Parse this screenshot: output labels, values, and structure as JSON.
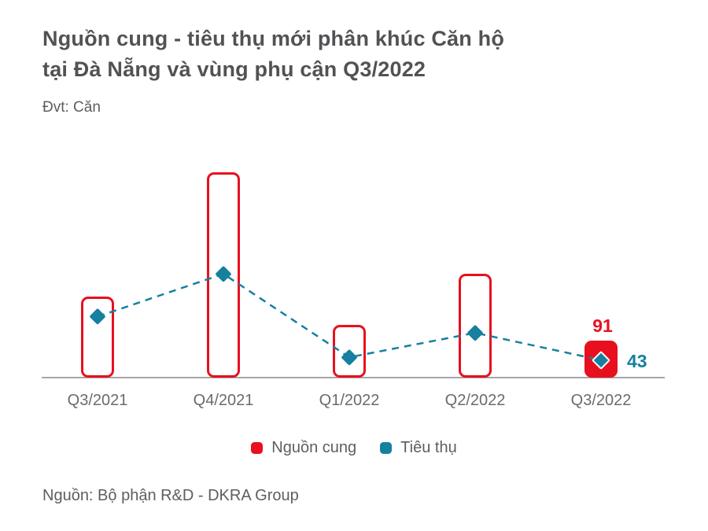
{
  "page": {
    "title_line1": "Nguồn cung - tiêu thụ mới phân khúc Căn hộ",
    "title_line2": "tại Đà Nẵng và vùng phụ cận Q3/2022",
    "unit_label": "Đvt: Căn",
    "source": "Nguồn: Bộ phận R&D - DKRA Group"
  },
  "colors": {
    "supply_red": "#e8101e",
    "consumption_teal": "#16809f",
    "title_gray": "#515254",
    "text_gray": "#5d5e60",
    "axis_gray": "#a6a6a6"
  },
  "legend": {
    "items": [
      {
        "label": "Nguồn cung",
        "color": "#e8101e"
      },
      {
        "label": "Tiêu thụ",
        "color": "#16809f"
      }
    ]
  },
  "chart_data": {
    "type": "bar",
    "subtype": "outlined-bars-with-dashed-line-and-diamond-markers",
    "title": "Nguồn cung - tiêu thụ mới phân khúc Căn hộ tại Đà Nẵng và vùng phụ cận Q3/2022",
    "unit": "Căn",
    "categories": [
      "Q3/2021",
      "Q4/2021",
      "Q1/2022",
      "Q2/2022",
      "Q3/2022"
    ],
    "series": [
      {
        "name": "Nguồn cung",
        "type": "bar",
        "color": "#e8101e",
        "values": [
          200,
          505,
          130,
          255,
          91
        ],
        "filled": [
          false,
          false,
          false,
          false,
          true
        ]
      },
      {
        "name": "Tiêu thụ",
        "type": "line",
        "line_style": "dashed",
        "marker": "diamond",
        "color": "#16809f",
        "values": [
          150,
          255,
          50,
          110,
          43
        ]
      }
    ],
    "data_labels": [
      {
        "series": "Nguồn cung",
        "category": "Q3/2022",
        "text": "91",
        "color": "#e8101e"
      },
      {
        "series": "Tiêu thụ",
        "category": "Q3/2022",
        "text": "43",
        "color": "#16809f"
      }
    ],
    "xlabel": "",
    "ylabel": "",
    "ylim": [
      0,
      560
    ],
    "grid": false,
    "y_axis_visible": false,
    "legend_position": "bottom"
  }
}
